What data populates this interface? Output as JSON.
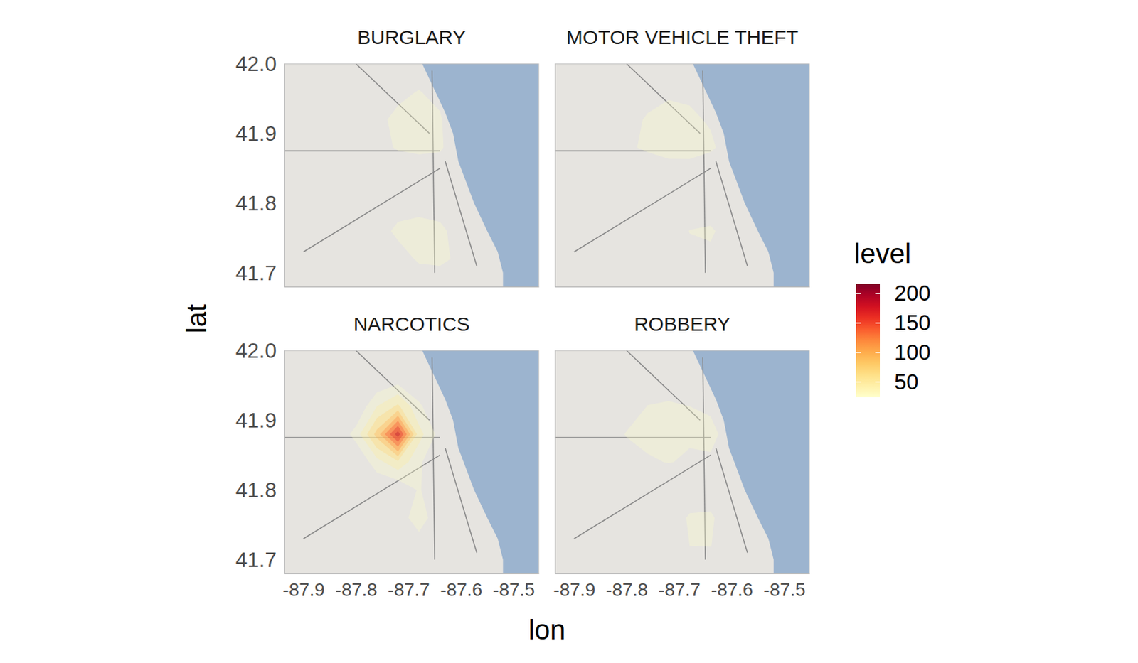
{
  "chart_data": {
    "type": "density_contour",
    "x_label": "lon",
    "y_label": "lat",
    "xlim": [
      -87.936,
      -87.452
    ],
    "ylim": [
      41.68,
      42.0
    ],
    "xticks": [
      -87.9,
      -87.8,
      -87.7,
      -87.6,
      -87.5
    ],
    "yticks": [
      41.7,
      41.8,
      41.9,
      {
        "value": 42.0,
        "label": "42.0"
      }
    ],
    "grid_lon": [
      -87.92,
      -87.88,
      -87.84,
      -87.8,
      -87.76,
      -87.72,
      -87.68,
      -87.64,
      -87.6,
      -87.56,
      -87.52,
      -87.48
    ],
    "grid_lat": [
      41.68,
      41.72,
      41.76,
      41.8,
      41.84,
      41.88,
      41.92,
      41.96,
      42.0
    ],
    "levels": [
      25,
      50,
      75,
      100,
      125,
      150,
      175,
      200
    ],
    "legend_title": "level",
    "color_range": [
      24,
      216
    ],
    "color_ticks": [
      50,
      100,
      150,
      200
    ],
    "facets": [
      {
        "title": "BURGLARY",
        "z": [
          [
            0,
            0,
            0,
            0,
            0,
            0,
            10,
            10,
            0,
            0,
            0,
            0
          ],
          [
            0,
            0,
            0,
            0,
            0,
            15,
            28,
            30,
            20,
            0,
            0,
            0
          ],
          [
            0,
            0,
            0,
            0,
            15,
            30,
            32,
            30,
            15,
            0,
            0,
            0
          ],
          [
            0,
            0,
            0,
            0,
            0,
            15,
            18,
            15,
            0,
            0,
            0,
            0
          ],
          [
            0,
            0,
            0,
            0,
            0,
            0,
            10,
            10,
            0,
            0,
            0,
            0
          ],
          [
            0,
            0,
            0,
            0,
            15,
            28,
            30,
            28,
            10,
            0,
            0,
            0
          ],
          [
            0,
            0,
            0,
            0,
            20,
            30,
            32,
            28,
            0,
            0,
            0,
            0
          ],
          [
            0,
            0,
            0,
            0,
            0,
            20,
            26,
            18,
            0,
            0,
            0,
            0
          ],
          [
            0,
            0,
            0,
            0,
            0,
            0,
            10,
            0,
            0,
            0,
            0,
            0
          ]
        ]
      },
      {
        "title": "MOTOR VEHICLE THEFT",
        "z": [
          [
            0,
            0,
            0,
            0,
            0,
            0,
            0,
            0,
            0,
            0,
            0,
            0
          ],
          [
            0,
            0,
            0,
            0,
            0,
            0,
            15,
            20,
            0,
            0,
            0,
            0
          ],
          [
            0,
            0,
            0,
            0,
            0,
            0,
            26,
            28,
            15,
            0,
            0,
            0
          ],
          [
            0,
            0,
            0,
            0,
            0,
            0,
            0,
            12,
            0,
            0,
            0,
            0
          ],
          [
            0,
            0,
            0,
            0,
            0,
            15,
            18,
            0,
            0,
            0,
            0,
            0
          ],
          [
            0,
            0,
            0,
            20,
            30,
            32,
            30,
            30,
            10,
            0,
            0,
            0
          ],
          [
            0,
            0,
            0,
            15,
            28,
            32,
            30,
            22,
            0,
            0,
            0,
            0
          ],
          [
            0,
            0,
            0,
            0,
            15,
            22,
            20,
            0,
            0,
            0,
            0,
            0
          ],
          [
            0,
            0,
            0,
            0,
            0,
            0,
            0,
            0,
            0,
            0,
            0,
            0
          ]
        ]
      },
      {
        "title": "NARCOTICS",
        "z": [
          [
            0,
            0,
            0,
            0,
            0,
            0,
            0,
            0,
            0,
            0,
            0,
            0
          ],
          [
            0,
            0,
            0,
            0,
            0,
            0,
            15,
            0,
            0,
            0,
            0,
            0
          ],
          [
            0,
            0,
            0,
            0,
            0,
            15,
            35,
            12,
            0,
            0,
            0,
            0
          ],
          [
            0,
            0,
            0,
            0,
            0,
            0,
            28,
            0,
            0,
            0,
            0,
            0
          ],
          [
            0,
            0,
            0,
            0,
            40,
            70,
            30,
            0,
            0,
            0,
            0,
            0
          ],
          [
            0,
            0,
            0,
            35,
            110,
            215,
            60,
            15,
            0,
            0,
            0,
            0
          ],
          [
            0,
            0,
            0,
            0,
            50,
            80,
            30,
            0,
            0,
            0,
            0,
            0
          ],
          [
            0,
            0,
            0,
            0,
            0,
            10,
            0,
            0,
            0,
            0,
            0,
            0
          ],
          [
            0,
            0,
            0,
            0,
            0,
            0,
            0,
            0,
            0,
            0,
            0,
            0
          ]
        ]
      },
      {
        "title": "ROBBERY",
        "z": [
          [
            0,
            0,
            0,
            0,
            0,
            0,
            0,
            0,
            0,
            0,
            0,
            0
          ],
          [
            0,
            0,
            0,
            0,
            0,
            0,
            25,
            26,
            0,
            0,
            0,
            0
          ],
          [
            0,
            0,
            0,
            0,
            0,
            0,
            30,
            28,
            12,
            0,
            0,
            0
          ],
          [
            0,
            0,
            0,
            0,
            0,
            0,
            0,
            15,
            0,
            0,
            0,
            0
          ],
          [
            0,
            0,
            0,
            0,
            22,
            26,
            22,
            20,
            0,
            0,
            0,
            0
          ],
          [
            0,
            0,
            0,
            28,
            32,
            30,
            28,
            34,
            10,
            0,
            0,
            0
          ],
          [
            0,
            0,
            0,
            0,
            26,
            28,
            25,
            20,
            0,
            0,
            0,
            0
          ],
          [
            0,
            0,
            0,
            0,
            0,
            12,
            0,
            0,
            0,
            0,
            0,
            0
          ],
          [
            0,
            0,
            0,
            0,
            0,
            0,
            0,
            0,
            0,
            0,
            0,
            0
          ]
        ]
      }
    ]
  }
}
